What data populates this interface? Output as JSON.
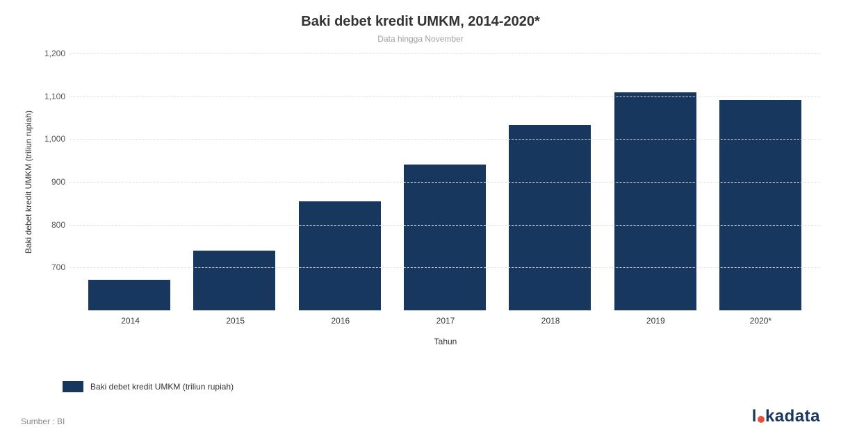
{
  "title": "Baki debet kredit UMKM, 2014-2020*",
  "subtitle": "Data hingga November",
  "title_fontsize": 20,
  "subtitle_fontsize": 12,
  "subtitle_color": "#a0a0a0",
  "chart": {
    "type": "bar",
    "categories": [
      "2014",
      "2015",
      "2016",
      "2017",
      "2018",
      "2019",
      "2020*"
    ],
    "values": [
      672,
      740,
      855,
      940,
      1033,
      1110,
      1092
    ],
    "bar_color": "#18375f",
    "background_color": "#ffffff",
    "grid_color": "#e0e0e0",
    "ymin": 600,
    "ymax": 1200,
    "yticks": [
      1200,
      1100,
      1000,
      900,
      800,
      700
    ],
    "ytick_labels": [
      "1,200",
      "1,100",
      "1,000",
      "900",
      "800",
      "700"
    ],
    "yaxis_title": "Baki debet kredit UMKM (triliun rupiah)",
    "xaxis_title": "Tahun",
    "axis_fontsize": 12,
    "tick_fontsize": 12,
    "bar_width": 0.78,
    "grid_dash": true
  },
  "legend": {
    "swatch_color": "#18375f",
    "label": "Baki debet kredit UMKM (triliun rupiah)",
    "fontsize": 12
  },
  "source": "Sumber : BI",
  "source_fontsize": 12,
  "brand": {
    "text_left": "l",
    "text_right": "kadata",
    "color": "#18375f",
    "dot_color": "#e94f37",
    "fontsize": 24,
    "dot_size": 10
  }
}
